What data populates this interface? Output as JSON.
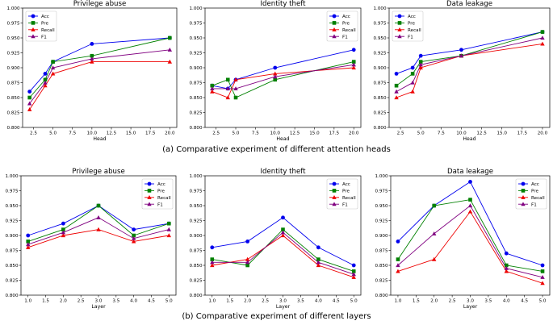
{
  "legend_labels": [
    "Acc",
    "Pre",
    "Recall",
    "F1"
  ],
  "colors": {
    "Acc": "#0000ee",
    "Pre": "#008000",
    "Recall": "#ee0000",
    "F1": "#800080"
  },
  "captions": {
    "a": "(a) Comparative experiment of different attention heads",
    "b": "(b)  Comparative experiment of different layers"
  },
  "chart_data": [
    {
      "type": "line",
      "title": "Privilege abuse",
      "xlabel": "Head",
      "ylabel": "",
      "x": [
        2,
        4,
        5,
        10,
        20
      ],
      "xlim": [
        1.1,
        20.9
      ],
      "ylim": [
        0.8,
        1.0
      ],
      "xticks": [
        2.5,
        5.0,
        7.5,
        10.0,
        12.5,
        15.0,
        17.5,
        20.0
      ],
      "xtick_labels": [
        "2.5",
        "5.0",
        "7.5",
        "10.0",
        "12.5",
        "15.0",
        "17.5",
        "20.0"
      ],
      "yticks": [
        0.8,
        0.825,
        0.85,
        0.875,
        0.9,
        0.925,
        0.95,
        0.975,
        1.0
      ],
      "ytick_labels": [
        "0.800",
        "0.825",
        "0.850",
        "0.875",
        "0.900",
        "0.925",
        "0.950",
        "0.975",
        "1.000"
      ],
      "legend_position": "top-left",
      "series": [
        {
          "name": "Acc",
          "marker": "circle",
          "values": [
            0.86,
            0.89,
            0.91,
            0.94,
            0.95
          ]
        },
        {
          "name": "Pre",
          "marker": "square",
          "values": [
            0.85,
            0.88,
            0.91,
            0.92,
            0.95
          ]
        },
        {
          "name": "Recall",
          "marker": "triangle",
          "values": [
            0.83,
            0.87,
            0.89,
            0.91,
            0.91
          ]
        },
        {
          "name": "F1",
          "marker": "triangle",
          "values": [
            0.84,
            0.875,
            0.9,
            0.915,
            0.93
          ]
        }
      ]
    },
    {
      "type": "line",
      "title": "Identity theft",
      "xlabel": "Head",
      "ylabel": "",
      "x": [
        2,
        4,
        5,
        10,
        20
      ],
      "xlim": [
        1.1,
        20.9
      ],
      "ylim": [
        0.8,
        1.0
      ],
      "xticks": [
        2.5,
        5.0,
        7.5,
        10.0,
        12.5,
        15.0,
        17.5,
        20.0
      ],
      "xtick_labels": [
        "2.5",
        "5.0",
        "7.5",
        "10.0",
        "12.5",
        "15.0",
        "17.5",
        "20.0"
      ],
      "yticks": [
        0.8,
        0.825,
        0.85,
        0.875,
        0.9,
        0.925,
        0.95,
        0.975,
        1.0
      ],
      "ytick_labels": [
        "0.800",
        "0.825",
        "0.850",
        "0.875",
        "0.900",
        "0.925",
        "0.950",
        "0.975",
        "1.000"
      ],
      "legend_position": "top-right",
      "series": [
        {
          "name": "Acc",
          "marker": "circle",
          "values": [
            0.87,
            0.865,
            0.88,
            0.9,
            0.93
          ]
        },
        {
          "name": "Pre",
          "marker": "square",
          "values": [
            0.87,
            0.88,
            0.85,
            0.88,
            0.91
          ]
        },
        {
          "name": "Recall",
          "marker": "triangle",
          "values": [
            0.86,
            0.85,
            0.88,
            0.89,
            0.9
          ]
        },
        {
          "name": "F1",
          "marker": "triangle",
          "values": [
            0.865,
            0.865,
            0.865,
            0.885,
            0.905
          ]
        }
      ]
    },
    {
      "type": "line",
      "title": "Data leakage",
      "xlabel": "Head",
      "ylabel": "",
      "x": [
        2,
        4,
        5,
        10,
        20
      ],
      "xlim": [
        1.1,
        20.9
      ],
      "ylim": [
        0.8,
        1.0
      ],
      "xticks": [
        2.5,
        5.0,
        7.5,
        10.0,
        12.5,
        15.0,
        17.5,
        20.0
      ],
      "xtick_labels": [
        "2.5",
        "5.0",
        "7.5",
        "10.0",
        "12.5",
        "15.0",
        "17.5",
        "20.0"
      ],
      "yticks": [
        0.8,
        0.825,
        0.85,
        0.875,
        0.9,
        0.925,
        0.95,
        0.975,
        1.0
      ],
      "ytick_labels": [
        "0.800",
        "0.825",
        "0.850",
        "0.875",
        "0.900",
        "0.925",
        "0.950",
        "0.975",
        "1.000"
      ],
      "legend_position": "top-left",
      "series": [
        {
          "name": "Acc",
          "marker": "circle",
          "values": [
            0.89,
            0.9,
            0.92,
            0.93,
            0.96
          ]
        },
        {
          "name": "Pre",
          "marker": "square",
          "values": [
            0.87,
            0.89,
            0.91,
            0.92,
            0.96
          ]
        },
        {
          "name": "Recall",
          "marker": "triangle",
          "values": [
            0.85,
            0.86,
            0.9,
            0.92,
            0.94
          ]
        },
        {
          "name": "F1",
          "marker": "triangle",
          "values": [
            0.86,
            0.875,
            0.905,
            0.92,
            0.95
          ]
        }
      ]
    },
    {
      "type": "line",
      "title": "Privilege abuse",
      "xlabel": "Layer",
      "ylabel": "",
      "x": [
        1,
        2,
        3,
        4,
        5
      ],
      "xlim": [
        0.8,
        5.2
      ],
      "ylim": [
        0.8,
        1.0
      ],
      "xticks": [
        1.0,
        1.5,
        2.0,
        2.5,
        3.0,
        3.5,
        4.0,
        4.5,
        5.0
      ],
      "xtick_labels": [
        "1.0",
        "1.5",
        "2.0",
        "2.5",
        "3.0",
        "3.5",
        "4.0",
        "4.5",
        "5.0"
      ],
      "yticks": [
        0.8,
        0.825,
        0.85,
        0.875,
        0.9,
        0.925,
        0.95,
        0.975,
        1.0
      ],
      "ytick_labels": [
        "0.800",
        "0.825",
        "0.850",
        "0.875",
        "0.900",
        "0.925",
        "0.950",
        "0.975",
        "1.000"
      ],
      "legend_position": "top-right",
      "series": [
        {
          "name": "Acc",
          "marker": "circle",
          "values": [
            0.9,
            0.92,
            0.95,
            0.91,
            0.92
          ]
        },
        {
          "name": "Pre",
          "marker": "square",
          "values": [
            0.89,
            0.91,
            0.95,
            0.9,
            0.92
          ]
        },
        {
          "name": "Recall",
          "marker": "triangle",
          "values": [
            0.88,
            0.9,
            0.91,
            0.89,
            0.9
          ]
        },
        {
          "name": "F1",
          "marker": "triangle",
          "values": [
            0.885,
            0.905,
            0.93,
            0.895,
            0.91
          ]
        }
      ]
    },
    {
      "type": "line",
      "title": "Identity theft",
      "xlabel": "Layer",
      "ylabel": "",
      "x": [
        1,
        2,
        3,
        4,
        5
      ],
      "xlim": [
        0.8,
        5.2
      ],
      "ylim": [
        0.8,
        1.0
      ],
      "xticks": [
        1.0,
        1.5,
        2.0,
        2.5,
        3.0,
        3.5,
        4.0,
        4.5,
        5.0
      ],
      "xtick_labels": [
        "1.0",
        "1.5",
        "2.0",
        "2.5",
        "3.0",
        "3.5",
        "4.0",
        "4.5",
        "5.0"
      ],
      "yticks": [
        0.8,
        0.825,
        0.85,
        0.875,
        0.9,
        0.925,
        0.95,
        0.975,
        1.0
      ],
      "ytick_labels": [
        "0.800",
        "0.825",
        "0.850",
        "0.875",
        "0.900",
        "0.925",
        "0.950",
        "0.975",
        "1.000"
      ],
      "legend_position": "top-right",
      "series": [
        {
          "name": "Acc",
          "marker": "circle",
          "values": [
            0.88,
            0.89,
            0.93,
            0.88,
            0.85
          ]
        },
        {
          "name": "Pre",
          "marker": "square",
          "values": [
            0.86,
            0.85,
            0.91,
            0.86,
            0.84
          ]
        },
        {
          "name": "Recall",
          "marker": "triangle",
          "values": [
            0.85,
            0.86,
            0.9,
            0.85,
            0.83
          ]
        },
        {
          "name": "F1",
          "marker": "triangle",
          "values": [
            0.855,
            0.855,
            0.905,
            0.855,
            0.835
          ]
        }
      ]
    },
    {
      "type": "line",
      "title": "Data leakage",
      "xlabel": "Layer",
      "ylabel": "",
      "x": [
        1,
        2,
        3,
        4,
        5
      ],
      "xlim": [
        0.8,
        5.2
      ],
      "ylim": [
        0.8,
        1.0
      ],
      "xticks": [
        1.0,
        1.5,
        2.0,
        2.5,
        3.0,
        3.5,
        4.0,
        4.5,
        5.0
      ],
      "xtick_labels": [
        "1.0",
        "1.5",
        "2.0",
        "2.5",
        "3.0",
        "3.5",
        "4.0",
        "4.5",
        "5.0"
      ],
      "yticks": [
        0.8,
        0.825,
        0.85,
        0.875,
        0.9,
        0.925,
        0.95,
        0.975,
        1.0
      ],
      "ytick_labels": [
        "0.800",
        "0.825",
        "0.850",
        "0.875",
        "0.900",
        "0.925",
        "0.950",
        "0.975",
        "1.000"
      ],
      "legend_position": "top-right",
      "series": [
        {
          "name": "Acc",
          "marker": "circle",
          "values": [
            0.89,
            0.95,
            0.99,
            0.87,
            0.85
          ]
        },
        {
          "name": "Pre",
          "marker": "square",
          "values": [
            0.86,
            0.95,
            0.96,
            0.85,
            0.84
          ]
        },
        {
          "name": "Recall",
          "marker": "triangle",
          "values": [
            0.84,
            0.86,
            0.94,
            0.84,
            0.82
          ]
        },
        {
          "name": "F1",
          "marker": "triangle",
          "values": [
            0.85,
            0.903,
            0.95,
            0.845,
            0.83
          ]
        }
      ]
    }
  ]
}
